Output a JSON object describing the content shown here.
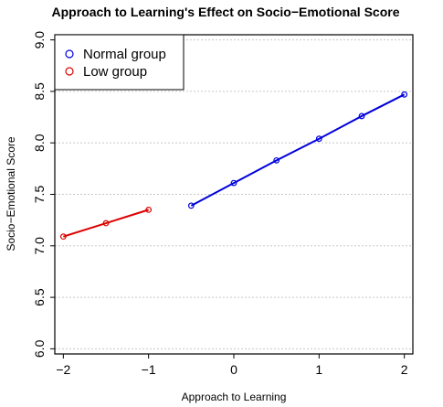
{
  "chart_data": {
    "type": "line",
    "title": "Approach to Learning's Effect on Socio−Emotional Score",
    "xlabel": "Approach to Learning",
    "ylabel": "Socio−Emotional Score",
    "xlim": [
      -2.1,
      2.1
    ],
    "ylim": [
      5.95,
      9.05
    ],
    "x_ticks": [
      -2,
      -1,
      0,
      1,
      2
    ],
    "x_tick_labels": [
      "−2",
      "−1",
      "0",
      "1",
      "2"
    ],
    "y_ticks": [
      6.0,
      6.5,
      7.0,
      7.5,
      8.0,
      8.5,
      9.0
    ],
    "y_tick_labels": [
      "6.0",
      "6.5",
      "7.0",
      "7.5",
      "8.0",
      "8.5",
      "9.0"
    ],
    "grid": "horizontal dotted",
    "legend_position": "top-left",
    "series": [
      {
        "name": "Normal group",
        "color": "#0000dd",
        "x": [
          -0.5,
          0,
          0.5,
          1,
          1.5,
          2
        ],
        "y": [
          7.39,
          7.61,
          7.83,
          8.04,
          8.26,
          8.47
        ]
      },
      {
        "name": "Low group",
        "color": "#dd0000",
        "x": [
          -2,
          -1.5,
          -1
        ],
        "y": [
          7.09,
          7.22,
          7.35
        ]
      }
    ]
  }
}
